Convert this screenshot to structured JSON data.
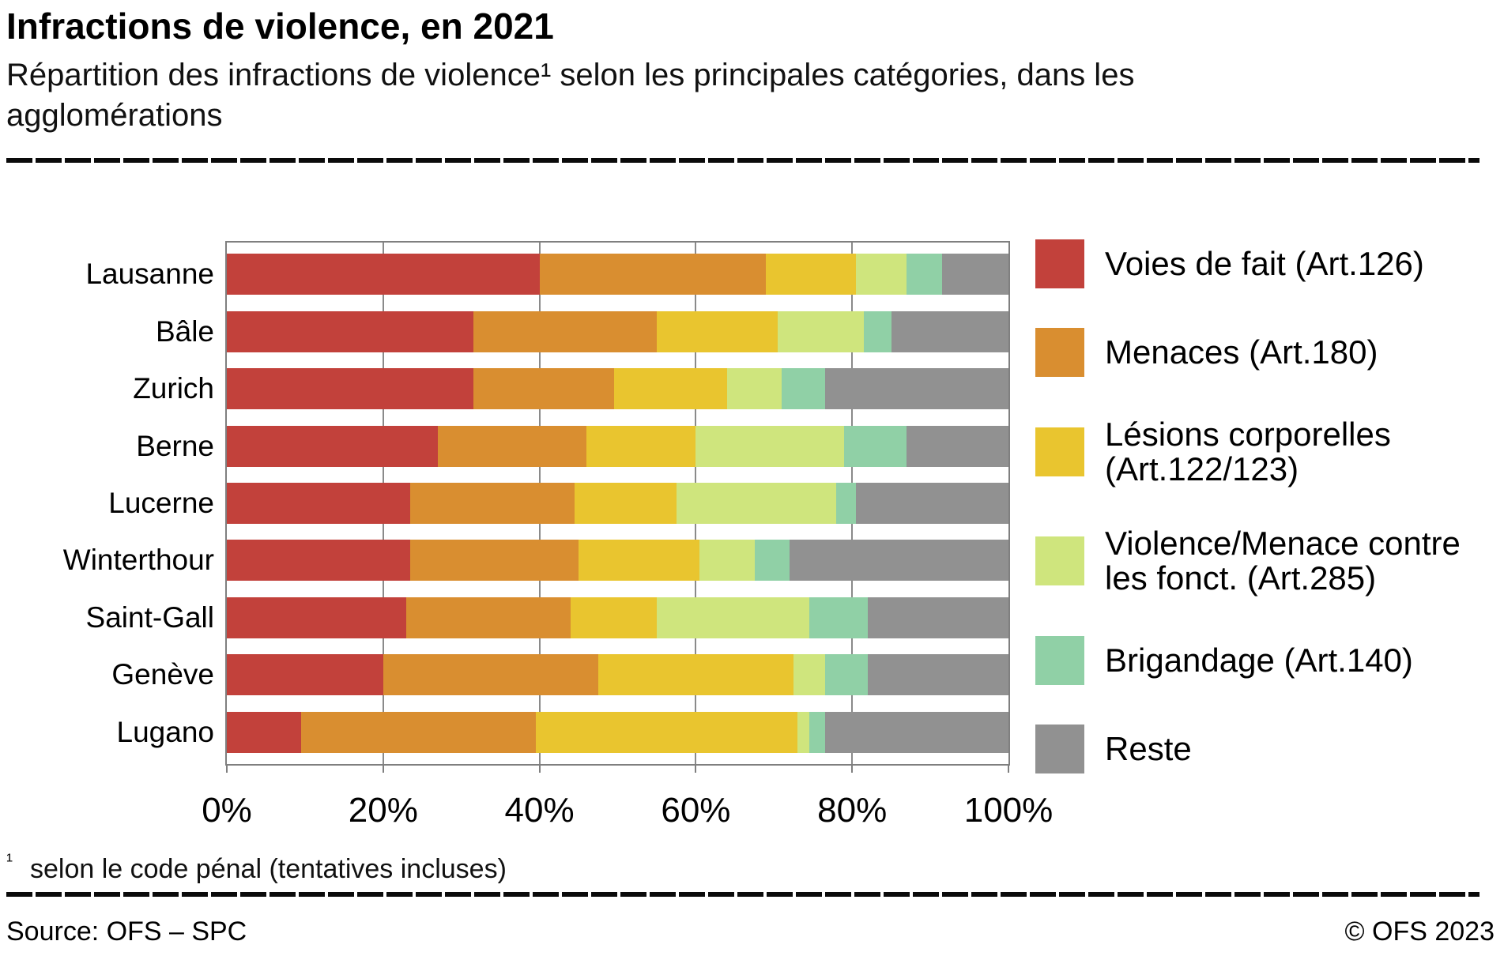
{
  "title": "Infractions de violence, en 2021",
  "subtitle": "Répartition des infractions de violence¹ selon les principales catégories, dans les agglomérations",
  "footnote": {
    "marker": "¹",
    "text": "selon le code pénal (tentatives incluses)"
  },
  "source": "Source: OFS – SPC",
  "copyright": "© OFS 2023",
  "chart_data": {
    "type": "bar",
    "orientation": "horizontal",
    "stacked": true,
    "unit": "percent",
    "grid": true,
    "legend_position": "right",
    "categories": [
      "Lausanne",
      "Bâle",
      "Zurich",
      "Berne",
      "Lucerne",
      "Winterthour",
      "Saint-Gall",
      "Genève",
      "Lugano"
    ],
    "series": [
      {
        "name": "Voies de fait (Art.126)",
        "color": "#c2413b",
        "values": [
          40,
          31.5,
          31.5,
          27,
          23.5,
          23.5,
          23,
          20,
          9.5
        ]
      },
      {
        "name": "Menaces (Art.180)",
        "color": "#d98e30",
        "values": [
          29,
          23.5,
          18,
          19,
          21,
          21.5,
          21,
          27.5,
          30
        ]
      },
      {
        "name": "Lésions corporelles (Art.122/123)",
        "color": "#e9c52f",
        "values": [
          11.5,
          15.5,
          14.5,
          14,
          13,
          15.5,
          11,
          25,
          33.5
        ]
      },
      {
        "name": "Violence/Menace contre les fonct. (Art.285)",
        "color": "#cfe57d",
        "values": [
          6.5,
          11,
          7,
          19,
          20.5,
          7,
          19.5,
          4,
          1.5
        ]
      },
      {
        "name": "Brigandage (Art.140)",
        "color": "#90d0a6",
        "values": [
          4.5,
          3.5,
          5.5,
          8,
          2.5,
          4.5,
          7.5,
          5.5,
          2
        ]
      },
      {
        "name": "Reste",
        "color": "#919191",
        "values": [
          8.5,
          15,
          23.5,
          13,
          19.5,
          28,
          18,
          18,
          23.5
        ]
      }
    ],
    "x_axis": {
      "min": 0,
      "max": 100,
      "tick_labels": [
        "0%",
        "20%",
        "40%",
        "60%",
        "80%",
        "100%"
      ]
    }
  }
}
